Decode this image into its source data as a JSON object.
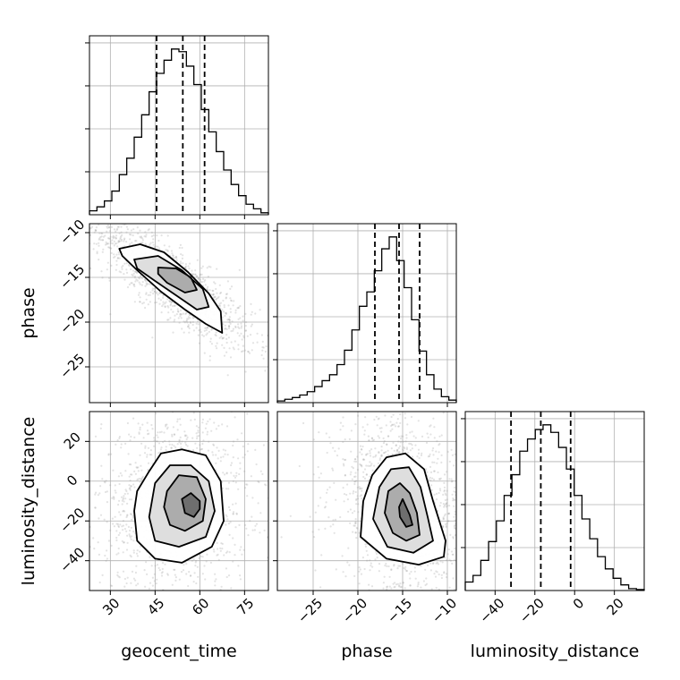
{
  "chart_data": {
    "type": "corner",
    "parameters": [
      {
        "name": "geocent_time",
        "label": "geocent_time",
        "range": [
          23,
          83
        ],
        "ticks": [
          30,
          45,
          60,
          75
        ],
        "quantiles": [
          45.5,
          54.3,
          61.6
        ],
        "hist": [
          0.6,
          1.2,
          2.1,
          3.6,
          6.1,
          8.6,
          11.8,
          15.2,
          18.7,
          21.5,
          23.5,
          25.2,
          24.8,
          22.6,
          19.8,
          16.0,
          12.6,
          9.6,
          6.8,
          4.6,
          2.9,
          1.6,
          0.9,
          0.3
        ]
      },
      {
        "name": "phase",
        "label": "phase",
        "range": [
          -29,
          -9
        ],
        "ticks": [
          -25,
          -20,
          -15,
          -10
        ],
        "quantiles": [
          -18.1,
          -15.4,
          -13.1
        ],
        "hist": [
          0.2,
          0.4,
          0.6,
          0.9,
          1.3,
          1.9,
          2.6,
          3.3,
          4.5,
          6.2,
          8.6,
          11.4,
          13.1,
          15.6,
          18.2,
          19.6,
          16.8,
          13.6,
          9.8,
          6.1,
          3.3,
          1.6,
          0.7,
          0.3
        ]
      },
      {
        "name": "luminosity_distance",
        "label": "luminosity_distance",
        "range": [
          -55,
          35
        ],
        "ticks": [
          -40,
          -20,
          0,
          20
        ],
        "quantiles": [
          -32,
          -17,
          -2
        ],
        "hist": [
          0.9,
          1.6,
          3.2,
          5.2,
          7.4,
          10.1,
          12.3,
          14.8,
          16.1,
          17.1,
          17.6,
          16.8,
          15.2,
          12.9,
          10.1,
          7.6,
          5.5,
          3.6,
          2.3,
          1.3,
          0.6,
          0.2,
          0.1
        ]
      }
    ],
    "pairs": [
      {
        "x": "geocent_time",
        "y": "phase",
        "contours": [
          [
            [
              33,
              -11.8
            ],
            [
              40,
              -11.3
            ],
            [
              48,
              -12.2
            ],
            [
              56,
              -14.4
            ],
            [
              63,
              -16.8
            ],
            [
              67,
              -18.8
            ],
            [
              67.5,
              -21.2
            ],
            [
              62,
              -20.2
            ],
            [
              55,
              -18.6
            ],
            [
              47,
              -16.6
            ],
            [
              39,
              -14.2
            ],
            [
              34,
              -12.6
            ]
          ],
          [
            [
              38,
              -13.0
            ],
            [
              46,
              -12.6
            ],
            [
              54,
              -14.2
            ],
            [
              61,
              -16.3
            ],
            [
              63,
              -18.3
            ],
            [
              59,
              -18.6
            ],
            [
              52,
              -17.0
            ],
            [
              45,
              -15.4
            ],
            [
              39,
              -14.0
            ]
          ],
          [
            [
              46,
              -13.9
            ],
            [
              52,
              -14.0
            ],
            [
              57,
              -15.0
            ],
            [
              59,
              -16.4
            ],
            [
              55,
              -16.7
            ],
            [
              49,
              -15.6
            ],
            [
              46,
              -14.6
            ]
          ]
        ]
      },
      {
        "x": "geocent_time",
        "y": "luminosity_distance",
        "contours": [
          [
            [
              43,
              5
            ],
            [
              47,
              14
            ],
            [
              54,
              16
            ],
            [
              62,
              13
            ],
            [
              67,
              0
            ],
            [
              68,
              -20
            ],
            [
              64,
              -33
            ],
            [
              54,
              -41
            ],
            [
              45,
              -39
            ],
            [
              39,
              -30
            ],
            [
              38,
              -15
            ],
            [
              39,
              -5
            ]
          ],
          [
            [
              45,
              -1
            ],
            [
              50,
              8
            ],
            [
              57,
              8
            ],
            [
              63,
              0
            ],
            [
              65,
              -15
            ],
            [
              62,
              -28
            ],
            [
              53,
              -33
            ],
            [
              45,
              -30
            ],
            [
              43,
              -18
            ]
          ],
          [
            [
              49,
              -5
            ],
            [
              53,
              3
            ],
            [
              59,
              2
            ],
            [
              62,
              -9
            ],
            [
              61,
              -20
            ],
            [
              55,
              -25
            ],
            [
              50,
              -22
            ],
            [
              48,
              -13
            ]
          ],
          [
            [
              54,
              -9
            ],
            [
              57,
              -6
            ],
            [
              60,
              -10
            ],
            [
              60,
              -14
            ],
            [
              58,
              -18
            ],
            [
              55,
              -16
            ]
          ]
        ]
      },
      {
        "x": "phase",
        "y": "luminosity_distance",
        "contours": [
          [
            [
              -19.7,
              -28
            ],
            [
              -19.4,
              -10
            ],
            [
              -18.4,
              3
            ],
            [
              -16.8,
              12
            ],
            [
              -14.7,
              14
            ],
            [
              -12.6,
              6
            ],
            [
              -11.6,
              -10
            ],
            [
              -10.2,
              -30
            ],
            [
              -10.4,
              -38
            ],
            [
              -13.2,
              -42
            ],
            [
              -16.8,
              -39
            ]
          ],
          [
            [
              -18.3,
              -19
            ],
            [
              -17.6,
              -3
            ],
            [
              -16.3,
              6
            ],
            [
              -14.3,
              7
            ],
            [
              -13.0,
              -3
            ],
            [
              -12.2,
              -18
            ],
            [
              -11.6,
              -30
            ],
            [
              -13.8,
              -36
            ],
            [
              -16.7,
              -33
            ]
          ],
          [
            [
              -17.0,
              -16
            ],
            [
              -16.6,
              -5
            ],
            [
              -15.3,
              -1
            ],
            [
              -14.2,
              -6
            ],
            [
              -13.4,
              -16
            ],
            [
              -13.1,
              -27
            ],
            [
              -14.6,
              -30
            ],
            [
              -16.1,
              -26
            ]
          ],
          [
            [
              -15.4,
              -13
            ],
            [
              -15.0,
              -9
            ],
            [
              -14.2,
              -17
            ],
            [
              -13.9,
              -22
            ],
            [
              -14.6,
              -23
            ],
            [
              -15.3,
              -18
            ]
          ]
        ]
      }
    ],
    "grid": true
  }
}
